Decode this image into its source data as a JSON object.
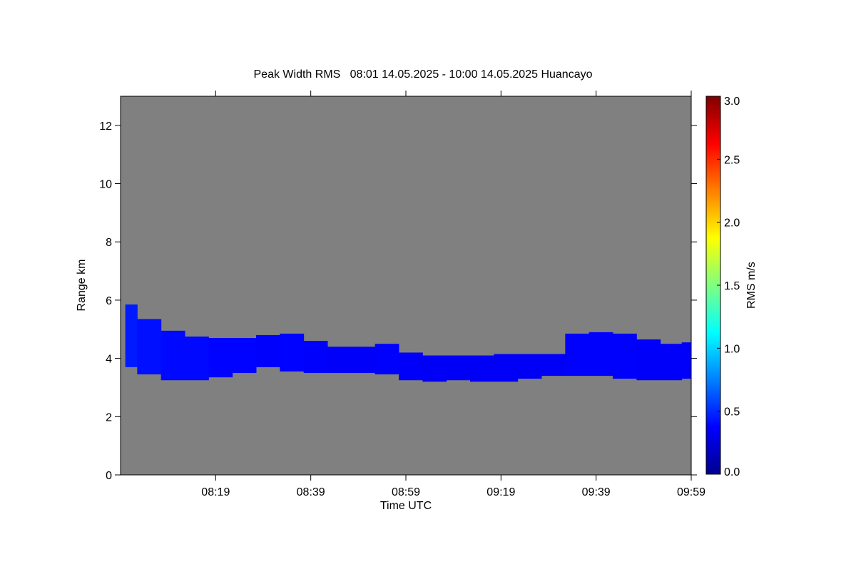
{
  "chart_data": {
    "type": "range-time",
    "title": "Peak Width RMS   08:01 14.05.2025 - 10:00 14.05.2025 Huancayo",
    "x_label": "Time UTC",
    "y_label": "Range km",
    "xlim": [
      479,
      599
    ],
    "xticks": [
      {
        "value": 499,
        "label": "08:19"
      },
      {
        "value": 519,
        "label": "08:39"
      },
      {
        "value": 539,
        "label": "08:59"
      },
      {
        "value": 559,
        "label": "09:19"
      },
      {
        "value": 579,
        "label": "09:39"
      },
      {
        "value": 599,
        "label": "09:59"
      }
    ],
    "ylim": [
      0,
      13
    ],
    "yticks": [
      0,
      2,
      4,
      6,
      8,
      10,
      12
    ],
    "background": "#808080",
    "x": [
      480,
      485,
      490,
      495,
      500,
      505,
      510,
      515,
      520,
      525,
      530,
      535,
      540,
      545,
      550,
      555,
      560,
      565,
      570,
      575,
      580,
      585,
      590,
      595,
      599
    ],
    "top": [
      5.85,
      5.35,
      4.95,
      4.75,
      4.7,
      4.7,
      4.8,
      4.85,
      4.6,
      4.4,
      4.4,
      4.5,
      4.2,
      4.1,
      4.1,
      4.1,
      4.15,
      4.15,
      4.15,
      4.85,
      4.9,
      4.85,
      4.65,
      4.5,
      4.55
    ],
    "base": [
      3.7,
      3.45,
      3.25,
      3.25,
      3.35,
      3.5,
      3.7,
      3.55,
      3.5,
      3.5,
      3.5,
      3.45,
      3.25,
      3.2,
      3.25,
      3.2,
      3.2,
      3.3,
      3.4,
      3.4,
      3.4,
      3.3,
      3.25,
      3.25,
      3.3
    ],
    "values": [
      0.45,
      0.42,
      0.4,
      0.4,
      0.38,
      0.38,
      0.37,
      0.38,
      0.37,
      0.36,
      0.36,
      0.37,
      0.36,
      0.35,
      0.35,
      0.35,
      0.35,
      0.35,
      0.35,
      0.37,
      0.37,
      0.37,
      0.36,
      0.36,
      0.36
    ],
    "colorbar": {
      "label": "RMS m/s",
      "lim": [
        0,
        3
      ],
      "ticks": [
        {
          "value": 0,
          "label": "0.0"
        },
        {
          "value": 0.5,
          "label": "0.5"
        },
        {
          "value": 1,
          "label": "1.0"
        },
        {
          "value": 1.5,
          "label": "1.5"
        },
        {
          "value": 2,
          "label": "2.0"
        },
        {
          "value": 2.5,
          "label": "2.5"
        },
        {
          "value": 3,
          "label": "3.0"
        }
      ]
    }
  }
}
